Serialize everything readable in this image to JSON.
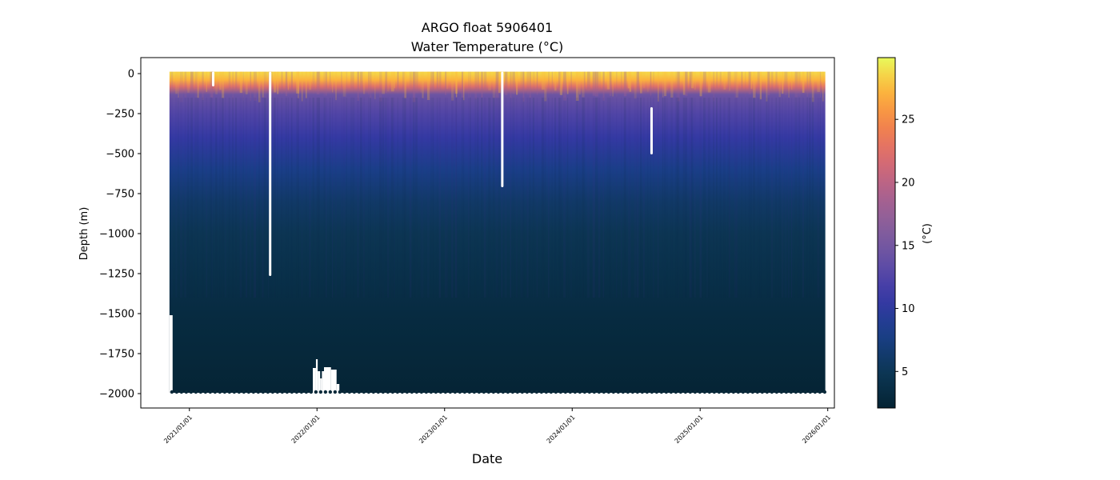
{
  "chart_data": {
    "type": "heatmap",
    "title": "ARGO float 5906401",
    "subtitle": "Water Temperature (°C)",
    "xlabel": "Date",
    "ylabel": "Depth (m)",
    "x_range": [
      "2020-08-15",
      "2026-01-20"
    ],
    "y_range": [
      -2090,
      100
    ],
    "x_ticks": [
      "2021/01/01",
      "2022/01/01",
      "2023/01/01",
      "2024/01/01",
      "2025/01/01",
      "2026/01/01"
    ],
    "x_tick_dates": [
      "2021-01-01",
      "2022-01-01",
      "2023-01-01",
      "2024-01-01",
      "2025-01-01",
      "2026-01-01"
    ],
    "y_ticks": [
      0,
      -250,
      -500,
      -750,
      -1000,
      -1250,
      -1500,
      -1750,
      -2000
    ],
    "colormap": "thermal",
    "colorbar": {
      "label": "(°C)",
      "range": [
        2.1,
        29.9
      ],
      "ticks": [
        5,
        10,
        15,
        20,
        25
      ]
    },
    "profile_start": "2020-11-05",
    "profile_end": "2025-12-25",
    "typical_max_depth": -1995,
    "profile_depth_limits": [
      {
        "from": "2020-11-05",
        "to": "2020-11-14",
        "depth": -1510
      },
      {
        "from": "2021-12-20",
        "to": "2021-12-29",
        "depth": -1840
      },
      {
        "from": "2021-12-29",
        "to": "2022-01-03",
        "depth": -1785
      },
      {
        "from": "2022-01-03",
        "to": "2022-01-10",
        "depth": -1860
      },
      {
        "from": "2022-01-10",
        "to": "2022-01-15",
        "depth": -1905
      },
      {
        "from": "2022-01-15",
        "to": "2022-01-21",
        "depth": -1860
      },
      {
        "from": "2022-01-21",
        "to": "2022-02-10",
        "depth": -1835
      },
      {
        "from": "2022-02-10",
        "to": "2022-02-26",
        "depth": -1850
      },
      {
        "from": "2022-02-26",
        "to": "2022-03-06",
        "depth": -1940
      }
    ],
    "data_gaps": [
      {
        "date": "2021-03-10",
        "depth_top": 0,
        "depth_bottom": -80
      },
      {
        "date": "2021-08-20",
        "depth_top": 0,
        "depth_bottom": -1265
      },
      {
        "date": "2023-06-15",
        "depth_top": 0,
        "depth_bottom": -710
      },
      {
        "date": "2024-08-15",
        "depth_top": -210,
        "depth_bottom": -505
      }
    ],
    "temperature_profile": [
      {
        "depth": 0,
        "temp": 28.5
      },
      {
        "depth": -40,
        "temp": 27.0
      },
      {
        "depth": -80,
        "temp": 22.5
      },
      {
        "depth": -130,
        "temp": 14.5
      },
      {
        "depth": -250,
        "temp": 12.5
      },
      {
        "depth": -400,
        "temp": 10.5
      },
      {
        "depth": -600,
        "temp": 8.0
      },
      {
        "depth": -800,
        "temp": 6.0
      },
      {
        "depth": -1000,
        "temp": 4.8
      },
      {
        "depth": -1250,
        "temp": 4.0
      },
      {
        "depth": -1500,
        "temp": 3.3
      },
      {
        "depth": -1750,
        "temp": 2.8
      },
      {
        "depth": -2000,
        "temp": 2.3
      }
    ]
  }
}
